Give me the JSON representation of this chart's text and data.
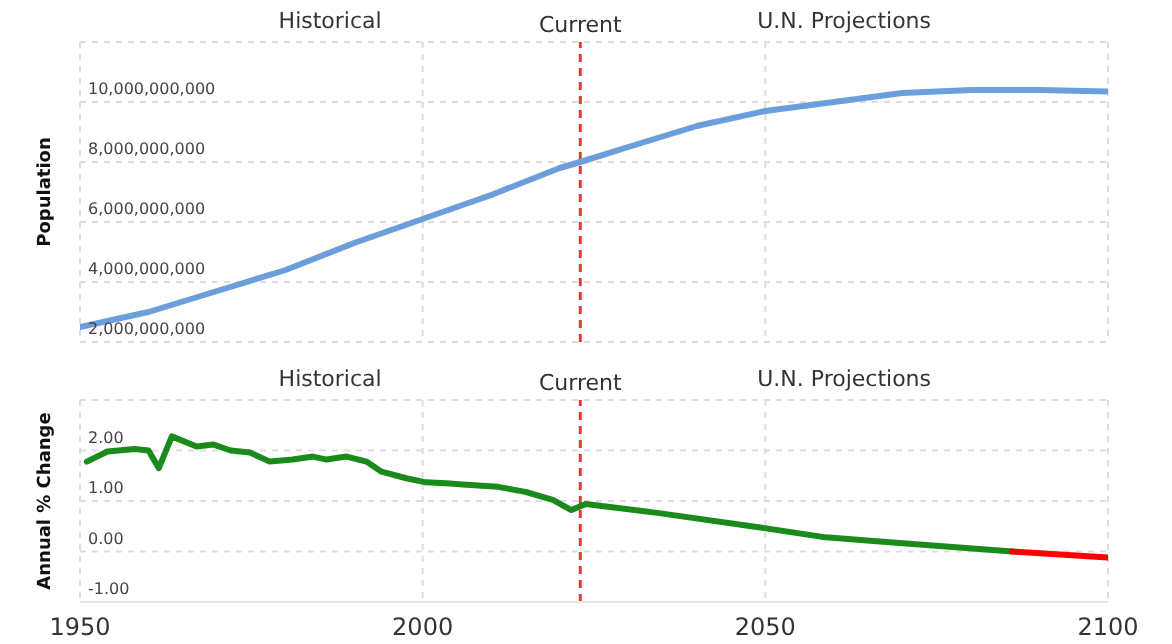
{
  "chart_data": [
    {
      "type": "line",
      "ylabel": "Population",
      "xlim": [
        1950,
        2100
      ],
      "xticks": [
        1950,
        2000,
        2050,
        2100
      ],
      "ylim": [
        2000000000,
        12000000000
      ],
      "yticks": [
        {
          "value": 2000000000,
          "label": "2,000,000,000"
        },
        {
          "value": 4000000000,
          "label": "4,000,000,000"
        },
        {
          "value": 6000000000,
          "label": "6,000,000,000"
        },
        {
          "value": 8000000000,
          "label": "8,000,000,000"
        },
        {
          "value": 10000000000,
          "label": "10,000,000,000"
        },
        {
          "value": 12000000000,
          "label": null
        }
      ],
      "tick_labels": "y",
      "grid": true,
      "marker": "none",
      "line_style": "solid",
      "series": [
        {
          "color": "#6a9fdb",
          "x": [
            1950,
            1960,
            1970,
            1980,
            1990,
            2000,
            2010,
            2020,
            2023,
            2030,
            2040,
            2050,
            2060,
            2070,
            2080,
            2090,
            2100
          ],
          "values": [
            2500000000,
            3000000000,
            3700000000,
            4400000000,
            5300000000,
            6100000000,
            6900000000,
            7800000000,
            8000000000,
            8500000000,
            9200000000,
            9700000000,
            10000000000,
            10300000000,
            10400000000,
            10400000000,
            10350000000
          ]
        }
      ],
      "ref_lines": [
        {
          "axis": "x",
          "value": 2023,
          "label": "Current",
          "color": "#e53935",
          "line_style": "dashed"
        }
      ],
      "annotations": [
        "Historical",
        "U.N. Projections"
      ]
    },
    {
      "type": "line",
      "ylabel": "Annual % Change",
      "xlim": [
        1950,
        2100
      ],
      "xticks": [
        1950,
        2000,
        2050,
        2100
      ],
      "ylim": [
        -1,
        3
      ],
      "yticks": [
        {
          "value": -1,
          "label": "-1.00"
        },
        {
          "value": 0,
          "label": "0.00"
        },
        {
          "value": 1,
          "label": "1.00"
        },
        {
          "value": 2,
          "label": "2.00"
        },
        {
          "value": 3,
          "label": null
        }
      ],
      "grid": true,
      "marker": "none",
      "line_style": "solid",
      "series": [
        {
          "color": "#1a8a1a",
          "x": [
            1951,
            1954,
            1958,
            1960,
            1961.5,
            1963.4,
            1967,
            1969.4,
            1972,
            1974.8,
            1977.7,
            1981,
            1984,
            1986,
            1988.9,
            1991.8,
            1994,
            1997.6,
            2000.5,
            2003.4,
            2006.4,
            2011,
            2015,
            2019,
            2021.7,
            2023.8,
            2034.5,
            2049,
            2058.8,
            2068.6,
            2078.3,
            2086
          ],
          "values": [
            1.78,
            1.98,
            2.03,
            2.0,
            1.65,
            2.28,
            2.08,
            2.12,
            2.0,
            1.96,
            1.78,
            1.82,
            1.88,
            1.82,
            1.88,
            1.78,
            1.58,
            1.45,
            1.37,
            1.35,
            1.32,
            1.28,
            1.18,
            1.02,
            0.82,
            0.94,
            0.76,
            0.48,
            0.28,
            0.18,
            0.08,
            0.0
          ]
        },
        {
          "color": "#ff0000",
          "x": [
            2086,
            2093,
            2100
          ],
          "values": [
            0.0,
            -0.06,
            -0.12
          ]
        }
      ],
      "ref_lines": [
        {
          "axis": "x",
          "value": 2023,
          "label": "Current",
          "color": "#e53935",
          "line_style": "dashed"
        }
      ],
      "annotations": [
        "Historical",
        "U.N. Projections"
      ]
    }
  ]
}
